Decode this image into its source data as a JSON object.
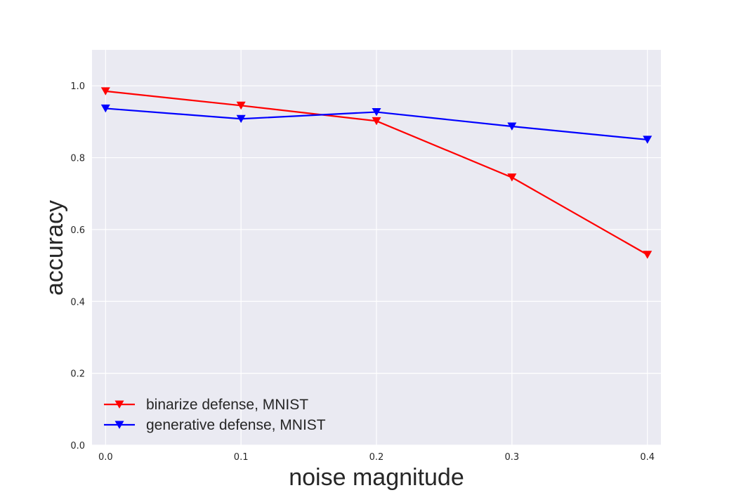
{
  "chart_data": {
    "type": "line",
    "xlabel": "noise magnitude",
    "ylabel": "accuracy",
    "x": [
      0.0,
      0.1,
      0.2,
      0.3,
      0.4
    ],
    "x_ticks": [
      "0.0",
      "0.1",
      "0.2",
      "0.3",
      "0.4"
    ],
    "y_ticks": [
      "0.0",
      "0.2",
      "0.4",
      "0.6",
      "0.8",
      "1.0"
    ],
    "xlim": [
      -0.01,
      0.41
    ],
    "ylim": [
      0.0,
      1.1
    ],
    "grid": true,
    "legend_position": "lower-left",
    "series": [
      {
        "name": "binarize defense, MNIST",
        "color": "#ff0000",
        "marker": "triangle-down",
        "values": [
          0.985,
          0.945,
          0.902,
          0.745,
          0.53
        ]
      },
      {
        "name": "generative defense, MNIST",
        "color": "#0000ff",
        "marker": "triangle-down",
        "values": [
          0.937,
          0.908,
          0.927,
          0.887,
          0.85
        ]
      }
    ],
    "plot_background": "#eaeaf2",
    "grid_color": "#ffffff"
  }
}
